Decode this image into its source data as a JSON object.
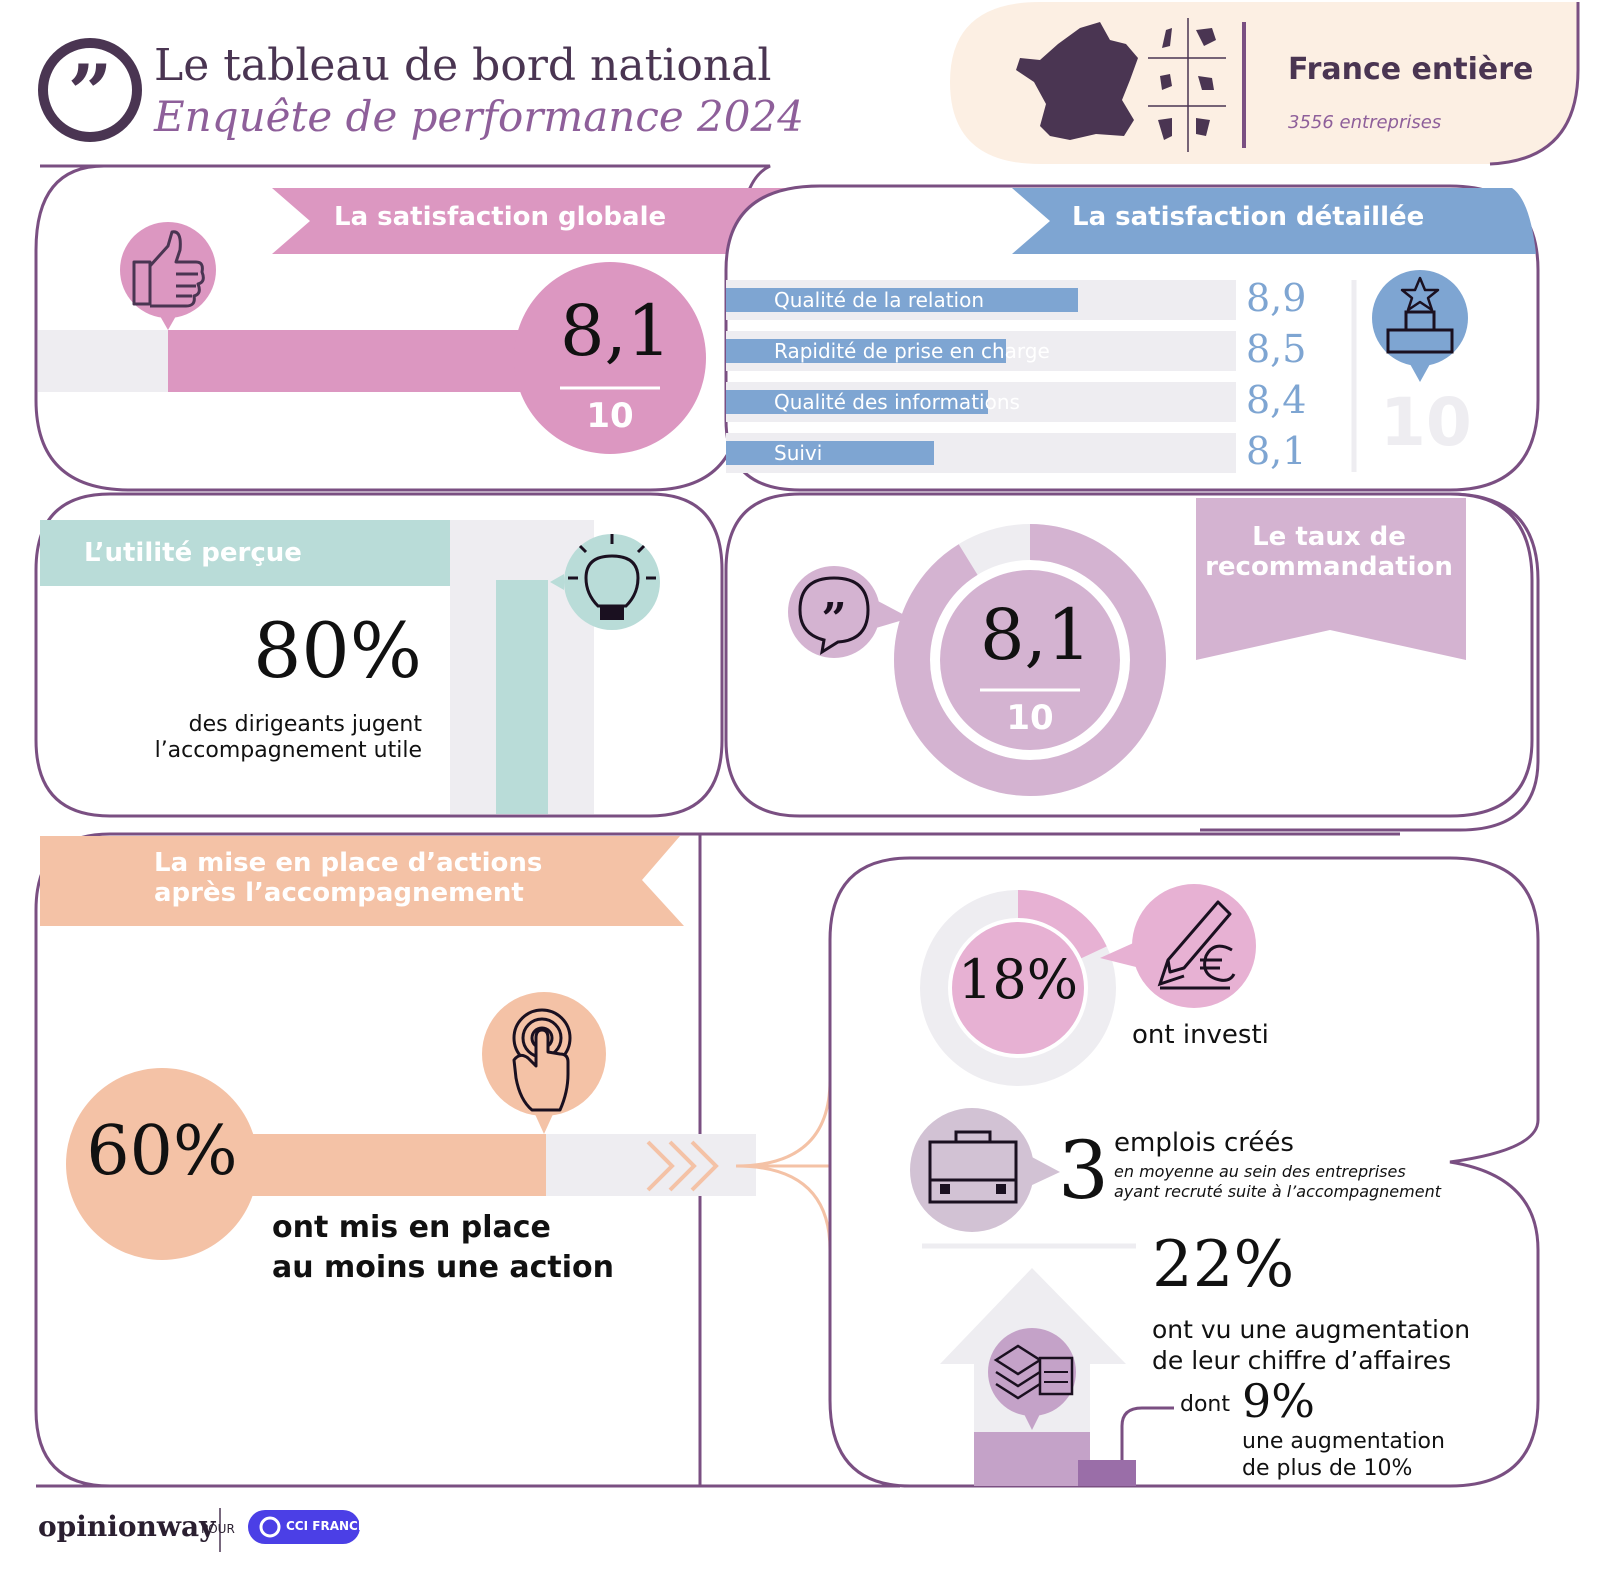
{
  "header": {
    "title": "Le tableau de bord national",
    "subtitle": "Enquête de performance 2024",
    "region": "France entière",
    "companies": "3556 entreprises"
  },
  "global_satisfaction": {
    "label": "La satisfaction globale",
    "score": "8,1",
    "out_of": "10"
  },
  "detailed_satisfaction": {
    "label": "La satisfaction détaillée",
    "scale_max": "10"
  },
  "utility": {
    "label": "L’utilité perçue",
    "value": "80%",
    "caption_line1": "des dirigeants jugent",
    "caption_line2": "l’accompagnement utile"
  },
  "recommendation": {
    "label_line1": "Le taux de",
    "label_line2": "recommandation",
    "score": "8,1",
    "out_of": "10"
  },
  "actions": {
    "label_line1": "La mise en place d’actions",
    "label_line2": "après l’accompagnement",
    "value": "60%",
    "caption_line1": "ont mis en place",
    "caption_line2": "au moins une action"
  },
  "outcomes": {
    "invested_value": "18%",
    "invested_caption": "ont investi",
    "jobs_value": "3",
    "jobs_caption": "emplois créés",
    "jobs_note_line1": "en moyenne au sein des entreprises",
    "jobs_note_line2": "ayant recruté suite à l’accompagnement",
    "revenue_value": "22%",
    "revenue_caption_line1": "ont vu une augmentation",
    "revenue_caption_line2": "de leur chiffre d’affaires",
    "revenue_sub_prefix": "dont",
    "revenue_sub_value": "9%",
    "revenue_sub_line1": "une augmentation",
    "revenue_sub_line2": "de plus de 10%"
  },
  "footer": {
    "brand": "opinionway",
    "pour": "POUR",
    "partner": "CCI FRANCE"
  },
  "chart_data": [
    {
      "type": "bar",
      "categories": [
        "Qualité de la relation",
        "Rapidité de prise en charge",
        "Qualité des informations",
        "Suivi"
      ],
      "values": [
        8.9,
        8.5,
        8.4,
        8.1
      ],
      "value_labels": [
        "8,9",
        "8,5",
        "8,4",
        "8,1"
      ],
      "xlim": [
        0,
        10
      ]
    },
    {
      "type": "pie",
      "categories": [
        "investi"
      ],
      "values": [
        18
      ],
      "value_label": "18%"
    }
  ],
  "colors": {
    "frame": "#7a4f82",
    "pink": "#dc97c1",
    "blue": "#7ea5d2",
    "teal": "#b9dcd8",
    "mauve": "#d4b3d1",
    "peach": "#f4c2a6",
    "lavender": "#c4a2c8",
    "dark": "#4a3552",
    "track": "#eeedf1"
  },
  "icons": [
    "quote-icon",
    "france-map-icon",
    "thumbs-up-icon",
    "podium-star-icon",
    "lightbulb-icon",
    "speech-bubble-icon",
    "touch-icon",
    "pen-euro-icon",
    "briefcase-icon",
    "banknotes-icon"
  ]
}
